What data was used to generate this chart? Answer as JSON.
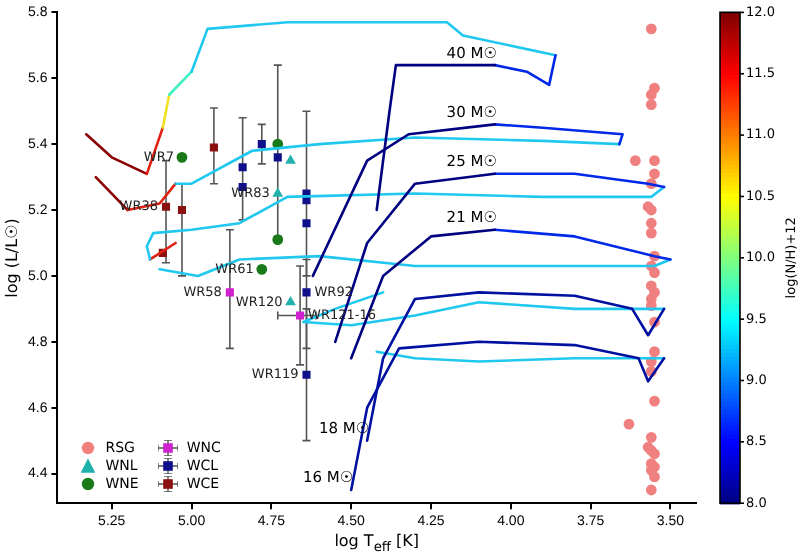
{
  "chart_data": {
    "type": "scatter",
    "xlabel": "log T$_{eff}$ [K]",
    "ylabel": "log (L/L☉)",
    "clabel": "log(N/H)+12",
    "xlim": [
      5.42,
      3.42
    ],
    "ylim": [
      4.31,
      5.8
    ],
    "xticks": [
      {
        "value": 5.25,
        "label": "5.25"
      },
      {
        "value": 5,
        "label": "5.00"
      },
      {
        "value": 4.75,
        "label": "4.75"
      },
      {
        "value": 4.5,
        "label": "4.50"
      },
      {
        "value": 4.25,
        "label": "4.25"
      },
      {
        "value": 4,
        "label": "4.00"
      },
      {
        "value": 3.75,
        "label": "3.75"
      },
      {
        "value": 3.5,
        "label": "3.50"
      }
    ],
    "yticks": [
      {
        "value": 4.4,
        "label": "4.4"
      },
      {
        "value": 4.6,
        "label": "4.6"
      },
      {
        "value": 4.8,
        "label": "4.8"
      },
      {
        "value": 5,
        "label": "5.0"
      },
      {
        "value": 5.2,
        "label": "5.2"
      },
      {
        "value": 5.4,
        "label": "5.4"
      },
      {
        "value": 5.6,
        "label": "5.6"
      },
      {
        "value": 5.8,
        "label": "5.8"
      }
    ],
    "clim": [
      8,
      12
    ],
    "cticks": [
      {
        "value": 8,
        "label": "8.0"
      },
      {
        "value": 8.5,
        "label": "8.5"
      },
      {
        "value": 9,
        "label": "9.0"
      },
      {
        "value": 9.5,
        "label": "9.5"
      },
      {
        "value": 10,
        "label": "10.0"
      },
      {
        "value": 10.5,
        "label": "10.5"
      },
      {
        "value": 11,
        "label": "11.0"
      },
      {
        "value": 11.5,
        "label": "11.5"
      },
      {
        "value": 12,
        "label": "12.0"
      }
    ],
    "legend": "bottom left",
    "grid": false,
    "series": [
      {
        "type": "line",
        "color": "#000080",
        "x": [
          4.42,
          4.38,
          4.36,
          4.05
        ],
        "values": [
          5.2,
          5.5,
          5.64,
          5.64
        ]
      },
      {
        "type": "line",
        "name": "40 M☉",
        "color": "#0028e8",
        "x": [
          4.05,
          3.95,
          3.88,
          3.86
        ],
        "values": [
          5.64,
          5.62,
          5.58,
          5.67
        ]
      },
      {
        "type": "line",
        "color": "#20c8f0",
        "x": [
          3.86,
          4.15,
          4.2,
          4.7,
          4.95,
          5.0
        ],
        "values": [
          5.67,
          5.73,
          5.77,
          5.77,
          5.75,
          5.62
        ]
      },
      {
        "type": "line",
        "color": "#40f0c0",
        "x": [
          5.0,
          5.07
        ],
        "values": [
          5.62,
          5.55
        ]
      },
      {
        "type": "line",
        "color": "#f0e020",
        "x": [
          5.07,
          5.09
        ],
        "values": [
          5.55,
          5.45
        ]
      },
      {
        "type": "line",
        "color": "#e02010",
        "x": [
          5.09,
          5.14
        ],
        "values": [
          5.45,
          5.31
        ]
      },
      {
        "type": "line",
        "color": "#8b0000",
        "x": [
          5.14,
          5.25,
          5.33
        ],
        "values": [
          5.31,
          5.36,
          5.43
        ]
      },
      {
        "type": "line",
        "color": "#000080",
        "x": [
          4.62,
          4.45,
          4.32,
          4.05
        ],
        "values": [
          5.0,
          5.35,
          5.43,
          5.46
        ]
      },
      {
        "type": "line",
        "name": "30 M☉",
        "color": "#0028e8",
        "x": [
          4.05,
          3.9,
          3.65,
          3.66
        ],
        "values": [
          5.46,
          5.45,
          5.43,
          5.4
        ]
      },
      {
        "type": "line",
        "color": "#20c8f0",
        "x": [
          3.66,
          3.9,
          4.3,
          4.6,
          4.81,
          5.0,
          5.05
        ],
        "values": [
          5.4,
          5.41,
          5.42,
          5.4,
          5.38,
          5.28,
          5.28
        ]
      },
      {
        "type": "line",
        "color": "#e02010",
        "x": [
          5.05,
          5.1,
          5.2
        ],
        "values": [
          5.28,
          5.22,
          5.2
        ]
      },
      {
        "type": "line",
        "color": "#8b0000",
        "x": [
          5.2,
          5.3
        ],
        "values": [
          5.2,
          5.3
        ]
      },
      {
        "type": "line",
        "color": "#000080",
        "x": [
          4.55,
          4.45,
          4.3,
          4.05
        ],
        "values": [
          4.8,
          5.1,
          5.28,
          5.31
        ]
      },
      {
        "type": "line",
        "name": "25 M☉",
        "color": "#0028e8",
        "x": [
          4.05,
          3.8,
          3.57,
          3.52
        ],
        "values": [
          5.31,
          5.31,
          5.28,
          5.27
        ]
      },
      {
        "type": "line",
        "color": "#20c8f0",
        "x": [
          3.52,
          3.56,
          3.9,
          4.3,
          4.7,
          4.85,
          5.0,
          5.12,
          5.14,
          5.13
        ],
        "values": [
          5.27,
          5.24,
          5.24,
          5.25,
          5.24,
          5.16,
          5.14,
          5.13,
          5.09,
          5.05
        ]
      },
      {
        "type": "line",
        "color": "#e02010",
        "x": [
          5.13,
          5.05
        ],
        "values": [
          5.05,
          5.1
        ]
      },
      {
        "type": "line",
        "color": "#000080",
        "x": [
          4.5,
          4.4,
          4.25,
          4.05
        ],
        "values": [
          4.75,
          5.0,
          5.12,
          5.14
        ]
      },
      {
        "type": "line",
        "name": "21 M☉",
        "color": "#0028e8",
        "x": [
          4.05,
          3.8,
          3.55,
          3.5
        ],
        "values": [
          5.14,
          5.12,
          5.06,
          5.05
        ]
      },
      {
        "type": "line",
        "color": "#20c8f0",
        "x": [
          3.5,
          3.55,
          3.9,
          4.3,
          4.6,
          4.85,
          4.98,
          5.1
        ],
        "values": [
          5.05,
          5.03,
          5.03,
          5.03,
          5.06,
          5.05,
          5.0,
          5.02
        ]
      },
      {
        "type": "line",
        "name": "18 M☉",
        "color": "#0010a0",
        "x": [
          4.45,
          4.4,
          4.3,
          4.1,
          3.8,
          3.62,
          3.57,
          3.52
        ],
        "values": [
          4.5,
          4.75,
          4.93,
          4.95,
          4.94,
          4.9,
          4.82,
          4.9
        ]
      },
      {
        "type": "line",
        "color": "#20c8f0",
        "x": [
          3.52,
          3.8,
          4.1,
          4.3,
          4.5,
          4.65,
          4.55,
          4.4
        ],
        "values": [
          4.9,
          4.9,
          4.92,
          4.88,
          4.85,
          4.86,
          4.9,
          4.95
        ]
      },
      {
        "type": "line",
        "name": "16 M☉",
        "color": "#0010a0",
        "x": [
          4.5,
          4.45,
          4.35,
          4.1,
          3.8,
          3.6,
          3.57,
          3.52
        ],
        "values": [
          4.35,
          4.6,
          4.78,
          4.8,
          4.79,
          4.75,
          4.68,
          4.75
        ]
      },
      {
        "type": "line",
        "color": "#20c8f0",
        "x": [
          3.52,
          3.8,
          4.1,
          4.3,
          4.42
        ],
        "values": [
          4.75,
          4.75,
          4.74,
          4.75,
          4.77
        ]
      },
      {
        "name": "RSG",
        "color": "#f08080",
        "marker": "circle",
        "x": [
          3.56,
          3.55,
          3.56,
          3.56,
          3.55,
          3.61,
          3.55,
          3.56,
          3.57,
          3.56,
          3.56,
          3.56,
          3.55,
          3.56,
          3.55,
          3.56,
          3.55,
          3.56,
          3.56,
          3.55,
          3.55,
          3.56,
          3.56,
          3.55,
          3.63,
          3.56,
          3.57,
          3.56,
          3.55,
          3.56,
          3.55,
          3.56,
          3.55,
          3.56
        ],
        "values": [
          5.75,
          5.57,
          5.55,
          5.52,
          5.35,
          5.35,
          5.31,
          5.28,
          5.21,
          5.2,
          5.16,
          5.13,
          5.06,
          5.03,
          5.01,
          4.97,
          4.95,
          4.93,
          4.91,
          4.86,
          4.77,
          4.74,
          4.71,
          4.62,
          4.55,
          4.51,
          4.48,
          4.47,
          4.46,
          4.43,
          4.42,
          4.41,
          4.39,
          4.35
        ]
      },
      {
        "name": "WNL",
        "color": "#20b2aa",
        "marker": "triangle",
        "x": [
          4.69,
          4.73,
          4.69
        ],
        "values": [
          5.35,
          5.25,
          4.92
        ]
      },
      {
        "name": "WNE",
        "color": "#1a7a1a",
        "marker": "circle",
        "x": [
          5.03,
          4.73,
          4.73,
          4.78
        ],
        "values": [
          5.36,
          5.4,
          5.11,
          5.02
        ]
      },
      {
        "name": "WNC",
        "color": "#d020d0",
        "marker": "square",
        "x": [
          4.88,
          4.66
        ],
        "values": [
          4.95,
          4.88
        ],
        "errors": [
          [
            4.78,
            5.14
          ],
          [
            4.73,
            5.03
          ]
        ],
        "xerrors": [
          null,
          [
            4.61,
            4.73
          ]
        ]
      },
      {
        "name": "WCL",
        "color": "#10108a",
        "marker": "square",
        "x": [
          4.78,
          4.84,
          4.84,
          4.73,
          4.64,
          4.64,
          4.64,
          4.64,
          4.64
        ],
        "values": [
          5.4,
          5.33,
          5.27,
          5.36,
          5.25,
          5.23,
          5.16,
          4.95,
          4.7
        ],
        "errors": [
          [
            5.34,
            5.46
          ],
          [
            5.17,
            5.48
          ],
          null,
          [
            5.12,
            5.64
          ],
          [
            5.0,
            5.5
          ],
          null,
          null,
          [
            4.78,
            5.05
          ],
          [
            4.5,
            4.9
          ]
        ]
      },
      {
        "name": "WCE",
        "color": "#8b1010",
        "marker": "square",
        "x": [
          4.93,
          5.08,
          5.03,
          5.09
        ],
        "values": [
          5.39,
          5.21,
          5.2,
          5.07
        ],
        "errors": [
          [
            5.28,
            5.51
          ],
          [
            5.04,
            5.35
          ],
          [
            5.0,
            5.28
          ],
          null
        ]
      }
    ],
    "annotations": [
      {
        "text": "WR7",
        "x": 5.03,
        "y": 5.36
      },
      {
        "text": "WR83",
        "x": 4.73,
        "y": 5.25
      },
      {
        "text": "WR38",
        "x": 5.08,
        "y": 5.21
      },
      {
        "text": "WR61",
        "x": 4.78,
        "y": 5.02
      },
      {
        "text": "WR58",
        "x": 4.88,
        "y": 4.95
      },
      {
        "text": "WR120",
        "x": 4.69,
        "y": 4.92
      },
      {
        "text": "WR92",
        "x": 4.64,
        "y": 4.95
      },
      {
        "text": "WR121-16",
        "x": 4.66,
        "y": 4.88
      },
      {
        "text": "WR119",
        "x": 4.64,
        "y": 4.7
      }
    ]
  }
}
